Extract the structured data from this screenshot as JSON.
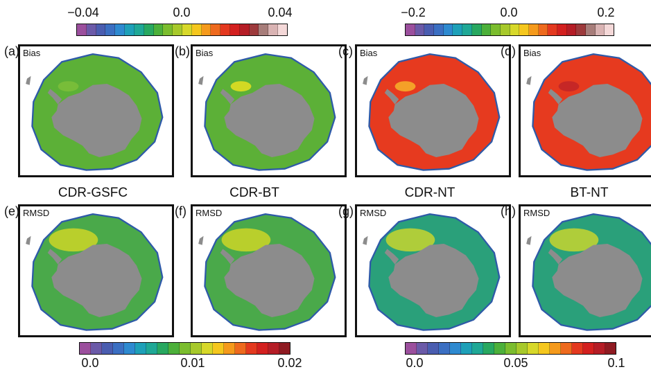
{
  "bias_colorbars": [
    {
      "id": "bias-gsfc-bt",
      "ticks": [
        "−0.04",
        "0.0",
        "0.04"
      ],
      "colors": [
        "#9b4f9d",
        "#6b5aa8",
        "#4a5db0",
        "#3b6fc2",
        "#2e8ad0",
        "#1ea0b8",
        "#1fa896",
        "#28a860",
        "#4cb03a",
        "#7bbd2e",
        "#a7c92b",
        "#d7d82a",
        "#f5c71e",
        "#f59a1c",
        "#ee6a1e",
        "#e4391f",
        "#d3201f",
        "#b51d26",
        "#9d3a3c",
        "#a77d7a",
        "#d9b3b3",
        "#f4d8d8"
      ]
    },
    {
      "id": "bias-nt",
      "ticks": [
        "−0.2",
        "0.0",
        "0.2"
      ],
      "colors": [
        "#9b4f9d",
        "#6b5aa8",
        "#4a5db0",
        "#3b6fc2",
        "#2e8ad0",
        "#1ea0b8",
        "#1fa896",
        "#28a860",
        "#4cb03a",
        "#7bbd2e",
        "#a7c92b",
        "#d7d82a",
        "#f5c71e",
        "#f59a1c",
        "#ee6a1e",
        "#e4391f",
        "#d3201f",
        "#b51d26",
        "#9d3a3c",
        "#a77d7a",
        "#d9b3b3",
        "#f4d8d8"
      ]
    }
  ],
  "rmsd_colorbars": [
    {
      "id": "rmsd-gsfc-bt",
      "ticks": [
        "0.0",
        "0.01",
        "0.02"
      ],
      "colors": [
        "#9b4f9d",
        "#6b5aa8",
        "#4a5db0",
        "#3b6fc2",
        "#2e8ad0",
        "#1ea0b8",
        "#1fa896",
        "#28a860",
        "#4cb03a",
        "#7bbd2e",
        "#a7c92b",
        "#d7d82a",
        "#f5c71e",
        "#f59a1c",
        "#ee6a1e",
        "#e4391f",
        "#d3201f",
        "#b51d26",
        "#8f1b22"
      ]
    },
    {
      "id": "rmsd-nt",
      "ticks": [
        "0.0",
        "0.05",
        "0.1"
      ],
      "colors": [
        "#9b4f9d",
        "#6b5aa8",
        "#4a5db0",
        "#3b6fc2",
        "#2e8ad0",
        "#1ea0b8",
        "#1fa896",
        "#28a860",
        "#4cb03a",
        "#7bbd2e",
        "#a7c92b",
        "#d7d82a",
        "#f5c71e",
        "#f59a1c",
        "#ee6a1e",
        "#e4391f",
        "#d3201f",
        "#b51d26",
        "#8f1b22"
      ]
    }
  ],
  "column_titles": [
    "CDR-GSFC",
    "CDR-BT",
    "CDR-NT",
    "BT-NT"
  ],
  "panels": [
    {
      "id": "a",
      "label": "(a)",
      "stat": "Bias",
      "ice_color": "#5cb037",
      "accent": "#7cc03a"
    },
    {
      "id": "b",
      "label": "(b)",
      "stat": "Bias",
      "ice_color": "#5cb037",
      "accent": "#e8e020"
    },
    {
      "id": "c",
      "label": "(c)",
      "stat": "Bias",
      "ice_color": "#e63a1f",
      "accent": "#f6b32a"
    },
    {
      "id": "d",
      "label": "(d)",
      "stat": "Bias",
      "ice_color": "#e63a1f",
      "accent": "#c02528"
    },
    {
      "id": "e",
      "label": "(e)",
      "stat": "RMSD",
      "ice_color": "#4aa94a",
      "accent": "#e8e020"
    },
    {
      "id": "f",
      "label": "(f)",
      "stat": "RMSD",
      "ice_color": "#4aa94a",
      "accent": "#e8e020"
    },
    {
      "id": "g",
      "label": "(g)",
      "stat": "RMSD",
      "ice_color": "#2aa07a",
      "accent": "#e8e020"
    },
    {
      "id": "h",
      "label": "(h)",
      "stat": "RMSD",
      "ice_color": "#2aa07a",
      "accent": "#e8e020"
    }
  ],
  "land_color": "#8c8c8c",
  "outline_color": "#2e5aa8"
}
